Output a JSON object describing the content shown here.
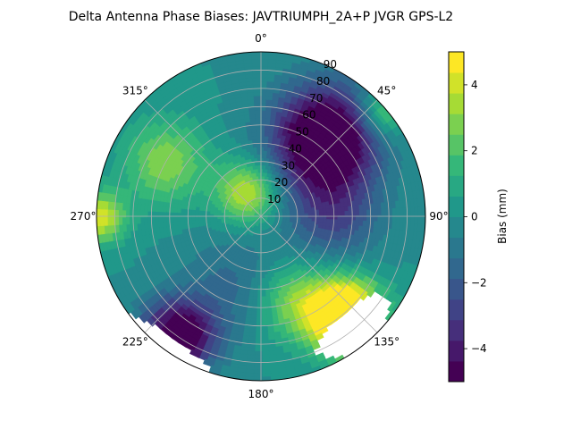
{
  "chart_data": {
    "type": "polar-contour",
    "title": "Delta Antenna Phase Biases: JAVTRIUMPH_2A+P JVGR GPS-L2",
    "azimuth_ticks": [
      "0°",
      "45°",
      "90°",
      "135°",
      "180°",
      "225°",
      "270°",
      "315°"
    ],
    "azimuth_direction": "clockwise",
    "azimuth_zero": "top",
    "radial_ticks": [
      "10",
      "20",
      "30",
      "40",
      "50",
      "60",
      "70",
      "80",
      "90"
    ],
    "radial_label_azimuth_deg": 22.5,
    "r_range": [
      0,
      90
    ],
    "grid": true,
    "colorbar": {
      "label": "Bias (mm)",
      "ticks": [
        "4",
        "2",
        "0",
        "−2",
        "−4"
      ],
      "tick_values": [
        4,
        2,
        0,
        -2,
        -4
      ],
      "range": [
        -5,
        5
      ],
      "levels": [
        -5,
        -4.375,
        -3.75,
        -3.125,
        -2.5,
        -1.875,
        -1.25,
        -0.625,
        0,
        0.625,
        1.25,
        1.875,
        2.5,
        3.125,
        3.75,
        4.375,
        5
      ],
      "colormap": "viridis"
    },
    "field_features": [
      {
        "az": 40,
        "r": 55,
        "amp": -7,
        "w": 20
      },
      {
        "az": 90,
        "r": 40,
        "amp": -2.5,
        "w": 18
      },
      {
        "az": 330,
        "r": 15,
        "amp": 4,
        "w": 12
      },
      {
        "az": 300,
        "r": 60,
        "amp": 3,
        "w": 16
      },
      {
        "az": 270,
        "r": 88,
        "amp": 4,
        "w": 10
      },
      {
        "az": 140,
        "r": 72,
        "amp": 8,
        "w": 14
      },
      {
        "az": 160,
        "r": 50,
        "amp": 3,
        "w": 15
      },
      {
        "az": 215,
        "r": 80,
        "amp": -6,
        "w": 14
      },
      {
        "az": 200,
        "r": 40,
        "amp": -1.5,
        "w": 20
      },
      {
        "az": 50,
        "r": 88,
        "amp": 3,
        "w": 10
      }
    ],
    "blank_regions": [
      {
        "az_range": [
          120,
          160
        ],
        "r_range": [
          65,
          90
        ],
        "center_az": 140,
        "center_r": 80,
        "az_half": 18,
        "r_half": 11
      },
      {
        "az_range": [
          200,
          235
        ],
        "r_range": [
          80,
          90
        ],
        "center_az": 215,
        "center_r": 90,
        "az_half": 18,
        "r_half": 8
      }
    ]
  }
}
